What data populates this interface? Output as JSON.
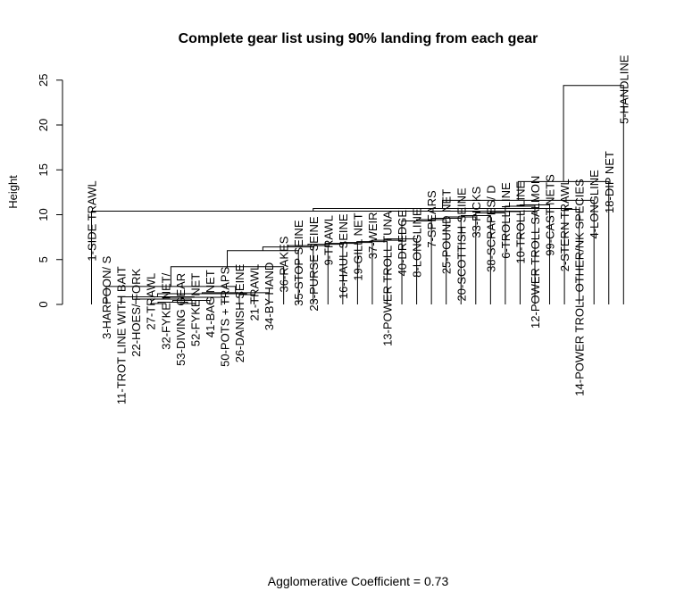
{
  "chart_data": {
    "type": "dendrogram",
    "title": "Complete gear list using 90% landing from each gear",
    "ylabel": "Height",
    "xlabel": "",
    "footer": "Agglomerative Coefficient =  0.73",
    "ylim": [
      0,
      25
    ],
    "yticks": [
      0,
      5,
      10,
      15,
      20,
      25
    ],
    "leaves": [
      "1-SIDE TRAWL",
      "3-HARPOON/ S",
      "11-TROT LINE WITH BAIT",
      "22-HOES/ FORK",
      "27-TRAWL",
      "32-FYKE NET/",
      "53-DIVING GEAR",
      "52-FYKE NET",
      "41-BAG NET",
      "50-POTS + TRAPS",
      "26-DANISH SEINE",
      "21-TRAWL",
      "34-BY HAND",
      "36-RAKES",
      "35-STOP SEINE",
      "23-PURSE SEINE",
      "9-TRAWL",
      "16-HAUL SEINE",
      "19-GILL NET",
      "37-WEIR",
      "13-POWER TROLL TUNA",
      "40-DREDGE",
      "8-LONGLINE",
      "7-SPEARS",
      "25-POUND NET",
      "20-SCOTTISH SEINE",
      "33-PICKS",
      "38-SCRAPES/ D",
      "6-TROLL LINE",
      "10-TROLL LINE",
      "12-POWER TROLL SALMON",
      "99-CAST NETS",
      "2-STERN TRAWL",
      "14-POWER TROLL OTHER/NK SPECIES",
      "4-LONGLINE",
      "18-DIP NET",
      "5-HANDLINE"
    ],
    "merges": [
      {
        "a": 4,
        "b": 5,
        "height": 0.1
      },
      {
        "a": 6,
        "b": 7,
        "height": 0.1
      },
      {
        "a": 4,
        "b": 6,
        "height": 0.25
      },
      {
        "a": 4,
        "b": 8,
        "height": 0.45
      },
      {
        "a": 3,
        "b": 4,
        "height": 0.6
      },
      {
        "a": 3,
        "b": 9,
        "height": 0.8
      },
      {
        "a": 2,
        "b": 3,
        "height": 0.85
      },
      {
        "a": 10,
        "b": 11,
        "height": 1.1
      },
      {
        "a": 2,
        "b": 10,
        "height": 1.2
      },
      {
        "a": 2,
        "b": 12,
        "height": 1.3
      },
      {
        "a": 1,
        "b": 2,
        "height": 2.0
      },
      {
        "a": 1,
        "b": 13,
        "height": 4.2
      },
      {
        "a": 1,
        "b": 14,
        "height": 6.0
      },
      {
        "a": 1,
        "b": 15,
        "height": 6.4
      },
      {
        "a": 1,
        "b": 16,
        "height": 6.55
      },
      {
        "a": 1,
        "b": 17,
        "height": 6.7
      },
      {
        "a": 1,
        "b": 18,
        "height": 6.8
      },
      {
        "a": 1,
        "b": 19,
        "height": 6.9
      },
      {
        "a": 1,
        "b": 20,
        "height": 7.0
      },
      {
        "a": 1,
        "b": 21,
        "height": 7.15
      },
      {
        "a": 1,
        "b": 22,
        "height": 7.3
      },
      {
        "a": 1,
        "b": 23,
        "height": 9.3
      },
      {
        "a": 1,
        "b": 24,
        "height": 9.45
      },
      {
        "a": 1,
        "b": 25,
        "height": 9.6
      },
      {
        "a": 1,
        "b": 26,
        "height": 9.75
      },
      {
        "a": 1,
        "b": 27,
        "height": 9.9
      },
      {
        "a": 1,
        "b": 28,
        "height": 10.2
      },
      {
        "a": 1,
        "b": 29,
        "height": 10.35
      },
      {
        "a": 32,
        "b": 33,
        "height": 10.6
      },
      {
        "a": 1,
        "b": 30,
        "height": 10.95
      },
      {
        "a": 1,
        "b": 31,
        "height": 11.1
      },
      {
        "a": 0,
        "b": 1,
        "height": 10.4
      },
      {
        "a": 0,
        "b": 32,
        "height": 10.7
      },
      {
        "a": 0,
        "b": 34,
        "height": 11.6
      },
      {
        "a": 0,
        "b": 35,
        "height": 13.7
      },
      {
        "a": 0,
        "b": 36,
        "height": 24.4
      }
    ]
  }
}
